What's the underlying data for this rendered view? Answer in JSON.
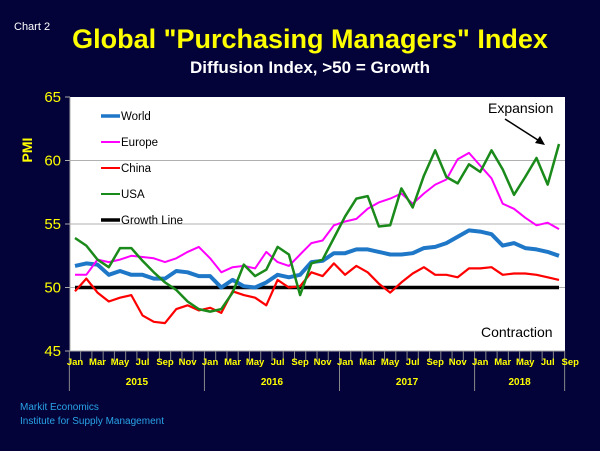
{
  "chart_label": "Chart 2",
  "sources": [
    "Markit Economics",
    "Institute for Supply Management"
  ],
  "colors": {
    "background": "#03033a",
    "title": "#ffff00",
    "world": "#1f77c8",
    "europe": "#ff00ff",
    "china": "#ff0000",
    "usa": "#1a8a1a",
    "growth_line": "#000000",
    "source": "#29a3e6"
  },
  "chart_data": {
    "type": "line",
    "title": "Global \"Purchasing Managers\" Index",
    "subtitle": "Diffusion Index, >50 = Growth",
    "xlabel": "",
    "ylabel": "PMI",
    "ylim": [
      45,
      65
    ],
    "yticks": [
      45,
      50,
      55,
      60,
      65
    ],
    "grid": true,
    "legend_position": "top-left",
    "month_tick_labels": [
      "Jan",
      "Mar",
      "May",
      "Jul",
      "Sep",
      "Nov",
      "Jan",
      "Mar",
      "May",
      "Jul",
      "Sep",
      "Nov",
      "Jan",
      "Mar",
      "May",
      "Jul",
      "Sep",
      "Nov",
      "Jan",
      "Mar",
      "May",
      "Jul",
      "Sep"
    ],
    "year_labels": [
      "2015",
      "2016",
      "2017",
      "2018"
    ],
    "annotations": [
      "Expansion",
      "Contraction"
    ],
    "x": [
      "2015-01",
      "2015-02",
      "2015-03",
      "2015-04",
      "2015-05",
      "2015-06",
      "2015-07",
      "2015-08",
      "2015-09",
      "2015-10",
      "2015-11",
      "2015-12",
      "2016-01",
      "2016-02",
      "2016-03",
      "2016-04",
      "2016-05",
      "2016-06",
      "2016-07",
      "2016-08",
      "2016-09",
      "2016-10",
      "2016-11",
      "2016-12",
      "2017-01",
      "2017-02",
      "2017-03",
      "2017-04",
      "2017-05",
      "2017-06",
      "2017-07",
      "2017-08",
      "2017-09",
      "2017-10",
      "2017-11",
      "2017-12",
      "2018-01",
      "2018-02",
      "2018-03",
      "2018-04",
      "2018-05",
      "2018-06",
      "2018-07",
      "2018-08"
    ],
    "series": [
      {
        "name": "World",
        "key": "world",
        "values": [
          51.7,
          51.9,
          51.8,
          51.0,
          51.3,
          51.0,
          51.0,
          50.7,
          50.7,
          51.3,
          51.2,
          50.9,
          50.9,
          50.0,
          50.6,
          50.1,
          50.0,
          50.4,
          51.0,
          50.8,
          51.0,
          52.0,
          52.1,
          52.7,
          52.7,
          53.0,
          53.0,
          52.8,
          52.6,
          52.6,
          52.7,
          53.1,
          53.2,
          53.5,
          54.0,
          54.5,
          54.4,
          54.2,
          53.3,
          53.5,
          53.1,
          53.0,
          52.8,
          52.5
        ]
      },
      {
        "name": "Europe",
        "key": "europe",
        "values": [
          51.0,
          51.0,
          52.2,
          52.0,
          52.2,
          52.5,
          52.4,
          52.3,
          52.0,
          52.3,
          52.8,
          53.2,
          52.3,
          51.2,
          51.6,
          51.7,
          51.5,
          52.8,
          52.0,
          51.7,
          52.6,
          53.5,
          53.7,
          54.9,
          55.2,
          55.4,
          56.2,
          56.7,
          57.0,
          57.4,
          56.6,
          57.4,
          58.1,
          58.5,
          60.1,
          60.6,
          59.6,
          58.6,
          56.6,
          56.2,
          55.5,
          54.9,
          55.1,
          54.6
        ]
      },
      {
        "name": "China",
        "key": "china",
        "values": [
          49.7,
          50.7,
          49.6,
          48.9,
          49.2,
          49.4,
          47.8,
          47.3,
          47.2,
          48.3,
          48.6,
          48.2,
          48.4,
          48.0,
          49.7,
          49.4,
          49.2,
          48.6,
          50.6,
          50.0,
          50.1,
          51.2,
          50.9,
          51.9,
          51.0,
          51.7,
          51.2,
          50.3,
          49.6,
          50.4,
          51.1,
          51.6,
          51.0,
          51.0,
          50.8,
          51.5,
          51.5,
          51.6,
          51.0,
          51.1,
          51.1,
          51.0,
          50.8,
          50.6
        ]
      },
      {
        "name": "USA",
        "key": "usa",
        "values": [
          53.9,
          53.3,
          52.2,
          51.6,
          53.1,
          53.1,
          52.1,
          51.2,
          50.4,
          49.8,
          48.9,
          48.3,
          48.1,
          48.3,
          49.6,
          51.8,
          50.9,
          51.4,
          53.2,
          52.6,
          49.4,
          51.9,
          52.2,
          53.9,
          55.6,
          57.0,
          57.2,
          54.8,
          54.9,
          57.8,
          56.3,
          58.8,
          60.8,
          58.7,
          58.2,
          59.7,
          59.1,
          60.8,
          59.3,
          57.3,
          58.7,
          60.2,
          58.1,
          61.3
        ]
      },
      {
        "name": "Growth Line",
        "key": "growth_line",
        "values": [
          50,
          50,
          50,
          50,
          50,
          50,
          50,
          50,
          50,
          50,
          50,
          50,
          50,
          50,
          50,
          50,
          50,
          50,
          50,
          50,
          50,
          50,
          50,
          50,
          50,
          50,
          50,
          50,
          50,
          50,
          50,
          50,
          50,
          50,
          50,
          50,
          50,
          50,
          50,
          50,
          50,
          50,
          50,
          50
        ]
      }
    ]
  }
}
